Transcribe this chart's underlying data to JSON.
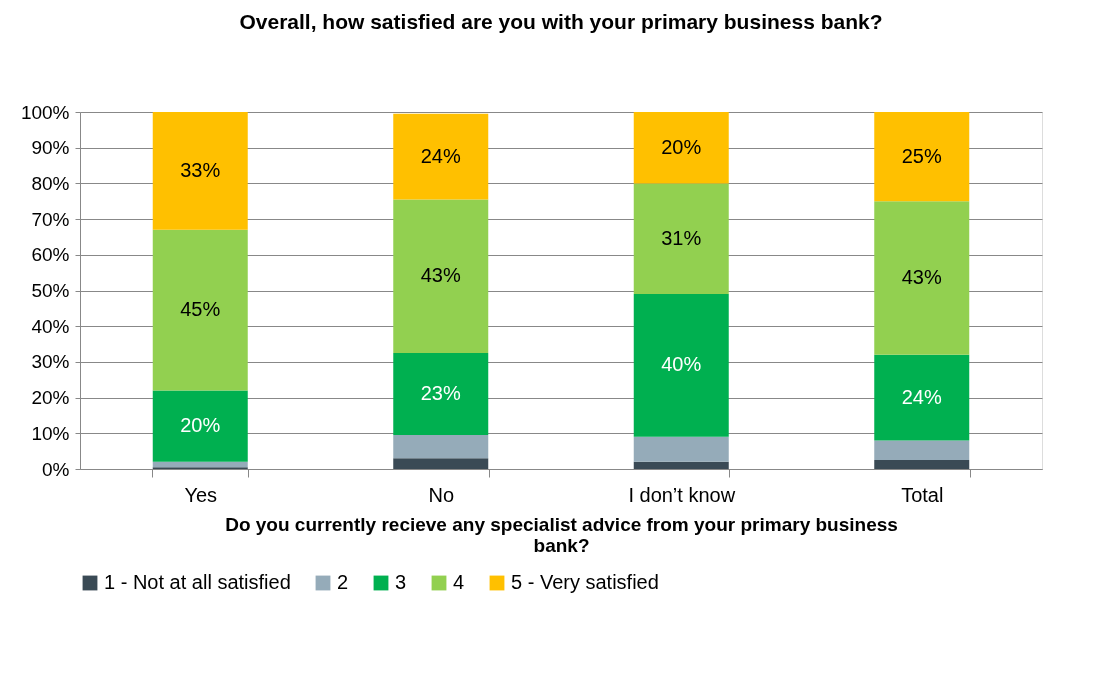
{
  "chart_data": {
    "type": "bar",
    "title": "Overall, how satisfied are you with your primary business bank?",
    "xlabel": "Do you  currently recieve any specialist advice from your primary business bank?",
    "categories": [
      "Yes",
      "No",
      "I don’t know",
      "Total"
    ],
    "stacked": true,
    "series": [
      {
        "name": "1 - Not at all satisfied",
        "color": "#3a4a55",
        "values": [
          0.5,
          3,
          2,
          2.5
        ]
      },
      {
        "name": "2",
        "color": "#95abb9",
        "values": [
          1.5,
          6.5,
          7,
          5.5
        ]
      },
      {
        "name": "3",
        "color": "#00b050",
        "values": [
          20,
          23,
          40,
          24
        ],
        "value_labels": [
          "20%",
          "23%",
          "40%",
          "24%"
        ]
      },
      {
        "name": "4",
        "color": "#92d050",
        "values": [
          45,
          43,
          31,
          43
        ],
        "value_labels": [
          "45%",
          "43%",
          "31%",
          "43%"
        ]
      },
      {
        "name": "5 - Very satisfied",
        "color": "#ffc000",
        "values": [
          33,
          24,
          20,
          25
        ],
        "value_labels": [
          "33%",
          "24%",
          "20%",
          "25%"
        ]
      }
    ],
    "ylim": [
      0,
      100
    ],
    "yticks": [
      {
        "value": 0,
        "label": "0%"
      },
      {
        "value": 10,
        "label": "10%"
      },
      {
        "value": 20,
        "label": "20%"
      },
      {
        "value": 30,
        "label": "30%"
      },
      {
        "value": 40,
        "label": "40%"
      },
      {
        "value": 50,
        "label": "50%"
      },
      {
        "value": 60,
        "label": "60%"
      },
      {
        "value": 70,
        "label": "70%"
      },
      {
        "value": 80,
        "label": "80%"
      },
      {
        "value": 90,
        "label": "90%"
      },
      {
        "value": 100,
        "label": "100%"
      }
    ],
    "grid": "y",
    "legend": "bottom"
  }
}
